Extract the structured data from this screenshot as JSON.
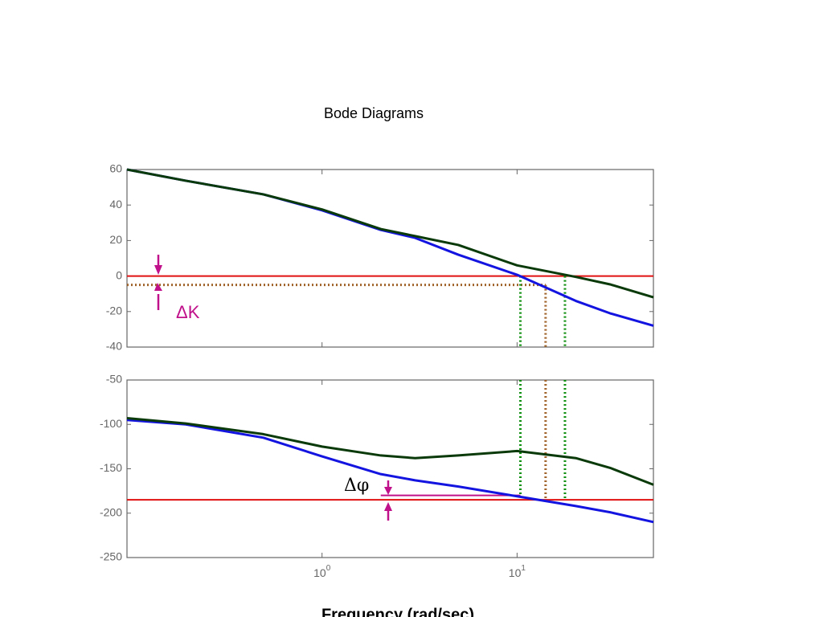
{
  "chart_data": [
    {
      "type": "line",
      "title": "Bode Diagrams",
      "xscale": "log",
      "x": [
        0.1,
        0.2,
        0.5,
        1,
        2,
        3,
        5,
        10,
        20,
        30,
        50
      ],
      "xlim": [
        0.1,
        50
      ],
      "xticks": [
        {
          "value": 1,
          "label": "10^0"
        },
        {
          "value": 10,
          "label": "10^1"
        }
      ],
      "ylim": [
        -40,
        60
      ],
      "yticks": [
        -40,
        -20,
        0,
        20,
        40,
        60
      ],
      "series": [
        {
          "color": "#1414e0",
          "values": [
            60,
            53.7,
            46,
            37,
            26,
            21.5,
            12,
            0.7,
            -14,
            -21,
            -28
          ]
        },
        {
          "color": "#0a3a0a",
          "values": [
            60,
            53.7,
            46,
            37.5,
            26.5,
            22.5,
            17.5,
            6,
            -0.5,
            -4.7,
            -12
          ]
        }
      ],
      "hlines": [
        {
          "y": 0,
          "color": "#e01010",
          "style": "solid"
        },
        {
          "y": -5,
          "x_end": 14,
          "color": "#a0642a",
          "style": "dotted"
        }
      ],
      "vlines": [
        {
          "x": 10.4,
          "y": 0,
          "color": "#109010"
        },
        {
          "x": 14,
          "y": -5,
          "color": "#a0642a"
        },
        {
          "x": 17.6,
          "y": 0,
          "color": "#109010"
        }
      ],
      "annotations": [
        "ΔK"
      ]
    },
    {
      "type": "line",
      "xlabel": "Frequency (rad/sec)",
      "xscale": "log",
      "x": [
        0.1,
        0.2,
        0.5,
        1,
        2,
        3,
        5,
        10,
        20,
        30,
        50
      ],
      "xlim": [
        0.1,
        50
      ],
      "xticks": [
        {
          "value": 1,
          "label": "10^0"
        },
        {
          "value": 10,
          "label": "10^1"
        }
      ],
      "ylim": [
        -250,
        -50
      ],
      "yticks": [
        -250,
        -200,
        -150,
        -100,
        -50
      ],
      "series": [
        {
          "color": "#1414e0",
          "values": [
            -95,
            -100,
            -115,
            -136,
            -156,
            -163,
            -170,
            -181,
            -192,
            -199,
            -210
          ]
        },
        {
          "color": "#0a3a0a",
          "values": [
            -93,
            -99,
            -111,
            -125,
            -135,
            -138,
            -135,
            -130,
            -138,
            -149,
            -168
          ]
        }
      ],
      "hlines": [
        {
          "y": -185,
          "color": "#e01010",
          "style": "solid"
        },
        {
          "y": -180,
          "x_start": 2,
          "x_end": 10.4,
          "color": "#c0108a",
          "style": "solid"
        }
      ],
      "vlines": [
        {
          "x": 10.4,
          "y": -181,
          "color": "#109010"
        },
        {
          "x": 14,
          "y": -185,
          "color": "#a0642a"
        },
        {
          "x": 17.6,
          "y": -185,
          "color": "#109010"
        }
      ],
      "annotations": [
        "Δφ"
      ]
    }
  ]
}
